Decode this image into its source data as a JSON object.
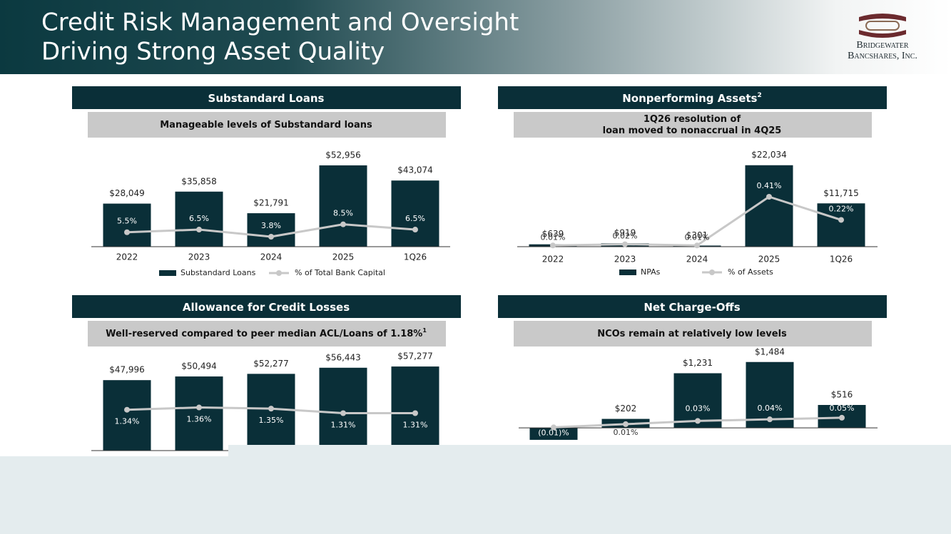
{
  "header": {
    "title_lines": [
      "Credit Risk Management and Oversight",
      "Driving Strong Asset Quality"
    ],
    "logo_lines": [
      "Bridgewater",
      "Bancshares, Inc."
    ]
  },
  "chart_data": [
    {
      "type": "combo",
      "title": "Substandard Loans",
      "subtitle_lines": [
        "Manageable levels of Substandard loans"
      ],
      "categories": [
        "2022",
        "2023",
        "2024",
        "2025",
        "1Q26"
      ],
      "series": [
        {
          "name": "Substandard Loans",
          "color": "#0a2f38",
          "values": [
            28049,
            35858,
            21791,
            52956,
            43074
          ],
          "value_labels": [
            "$28,049",
            "$35,858",
            "$21,791",
            "$52,956",
            "$43,074"
          ]
        },
        {
          "name": "% of Total Bank Capital",
          "color": "#c8c8c8",
          "axis": "y2",
          "values": [
            5.5,
            6.5,
            3.8,
            8.5,
            6.5
          ],
          "value_labels": [
            "5.5%",
            "6.5%",
            "3.8%",
            "8.5%",
            "6.5%"
          ]
        }
      ],
      "ylim": [
        0,
        65000
      ],
      "y2lim": [
        0,
        38
      ],
      "legend": "bottom"
    },
    {
      "type": "combo",
      "title": "Nonperforming Assets",
      "title_footnote": "2",
      "subtitle_lines": [
        "1Q26 resolution of",
        "loan moved to nonaccrual in 4Q25"
      ],
      "categories": [
        "2022",
        "2023",
        "2024",
        "2025",
        "1Q26"
      ],
      "series": [
        {
          "name": "NPAs",
          "color": "#0a2f38",
          "values": [
            639,
            919,
            301,
            22034,
            11715
          ],
          "value_labels": [
            "$639",
            "$919",
            "$301",
            "$22,034",
            "$11,715"
          ]
        },
        {
          "name": "% of Assets",
          "color": "#c8c8c8",
          "axis": "y2",
          "values": [
            0.01,
            0.02,
            0.01,
            0.41,
            0.22
          ],
          "value_labels": [
            "0.01%",
            "0.02%",
            "0.01%",
            "0.41%",
            "0.22%"
          ]
        }
      ],
      "ylim": [
        0,
        27000
      ],
      "y2lim": [
        0,
        0.82
      ],
      "legend": "bottom"
    },
    {
      "type": "combo",
      "title": "Allowance for Credit Losses",
      "subtitle_lines": [
        "Well-reserved compared to peer median ACL/Loans of 1.18%"
      ],
      "subtitle_footnote": "1",
      "series": [
        {
          "color": "#0a2f38",
          "values": [
            47996,
            50494,
            52277,
            56443,
            57277
          ],
          "value_labels": [
            "$47,996",
            "$50,494",
            "$52,277",
            "$56,443",
            "$57,277"
          ]
        },
        {
          "color": "#c8c8c8",
          "axis": "y2",
          "values": [
            1.34,
            1.36,
            1.35,
            1.31,
            1.31
          ],
          "value_labels": [
            "1.34%",
            "1.36%",
            "1.35%",
            "1.31%",
            "1.31%"
          ]
        }
      ],
      "ylim": [
        0,
        68000
      ],
      "y2lim": [
        0.98,
        1.86
      ]
    },
    {
      "type": "combo",
      "title": "Net Charge-Offs",
      "subtitle_lines": [
        "NCOs remain at relatively low levels"
      ],
      "series": [
        {
          "color": "#0a2f38",
          "values": [
            -270,
            202,
            1231,
            1484,
            516
          ],
          "value_labels": [
            null,
            "$202",
            "$1,231",
            "$1,484",
            "$516"
          ]
        },
        {
          "color": "#c8c8c8",
          "axis": "y2",
          "values": [
            -0.01,
            0.01,
            0.03,
            0.04,
            0.05
          ],
          "value_labels": [
            "(0.01)%",
            "0.01%",
            "0.03%",
            "0.04%",
            "0.05%"
          ]
        }
      ],
      "ylim": [
        -480,
        1930
      ],
      "y2lim": [
        -0.146,
        0.521
      ]
    }
  ]
}
